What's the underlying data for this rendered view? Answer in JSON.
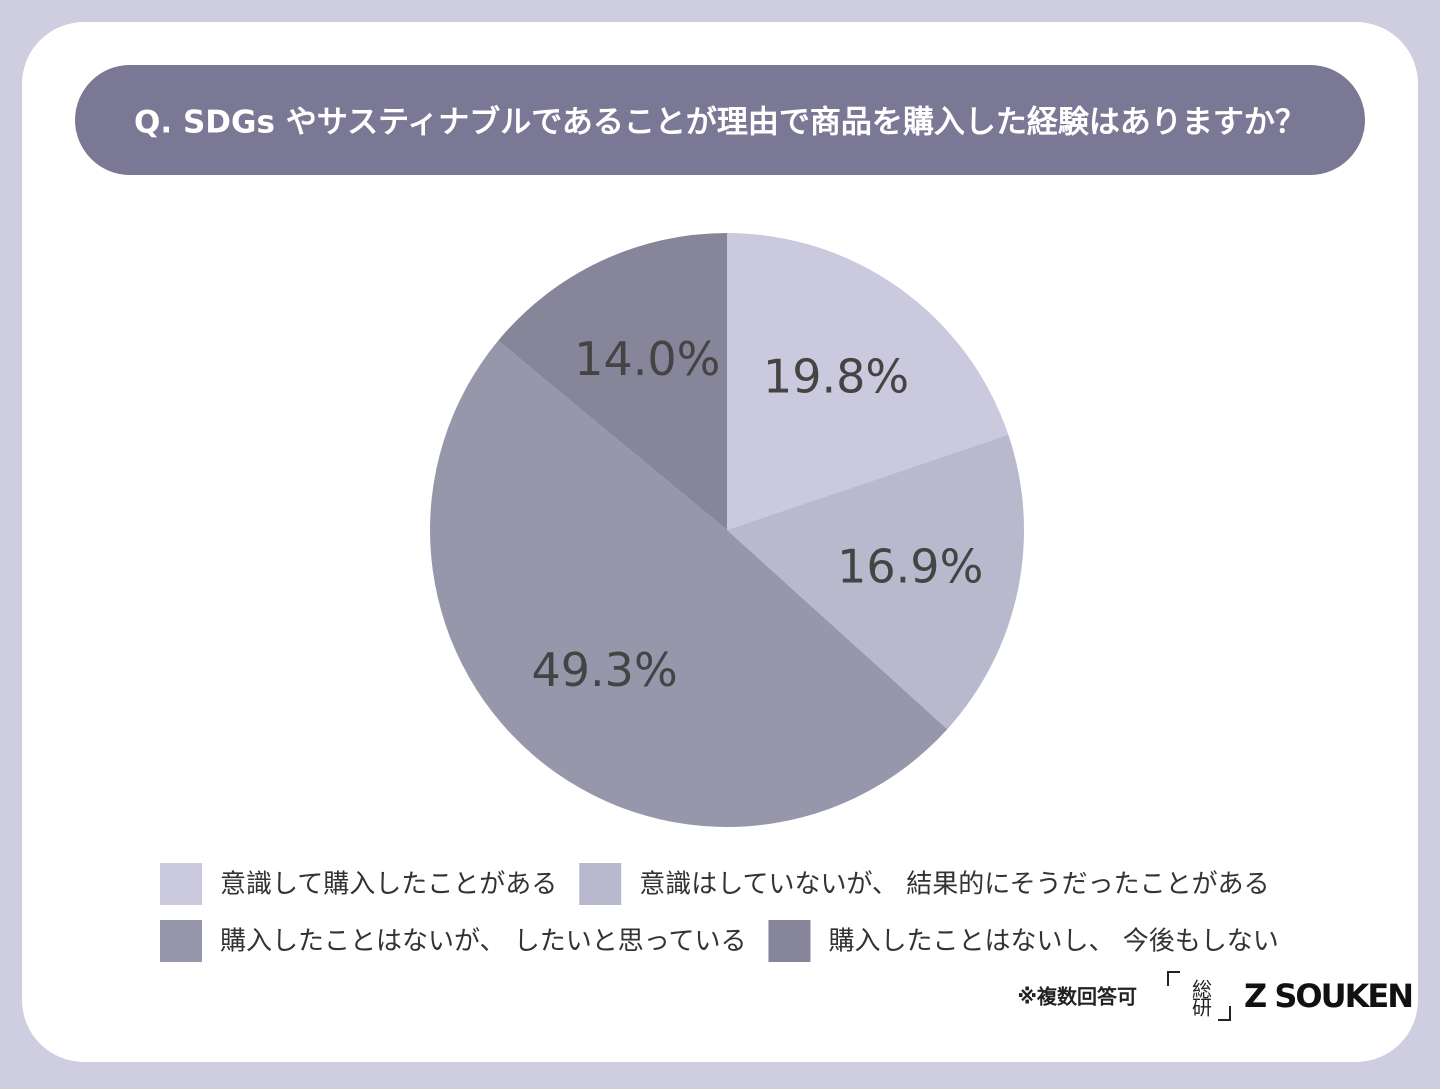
{
  "chart_data": {
    "type": "pie",
    "title": "Q. SDGs やサスティナブルであることが理由で商品を購入した経験はありますか？",
    "categories": [
      "意識して購入したことがある",
      "意識はしていないが、 結果的にそうだったことがある",
      "購入したことはないが、 したいと思っている",
      "購入したことはないし、 今後もしない"
    ],
    "values": [
      19.8,
      16.9,
      49.3,
      14.0
    ],
    "value_labels": [
      "19.8%",
      "16.9%",
      "49.3%",
      "14.0%"
    ],
    "colors": [
      "#cac9de",
      "#b9b9cd",
      "#9797ab",
      "#868599"
    ],
    "note": "※複数回答可",
    "brand": "Z SOUKEN",
    "brand_mark": "総研"
  }
}
